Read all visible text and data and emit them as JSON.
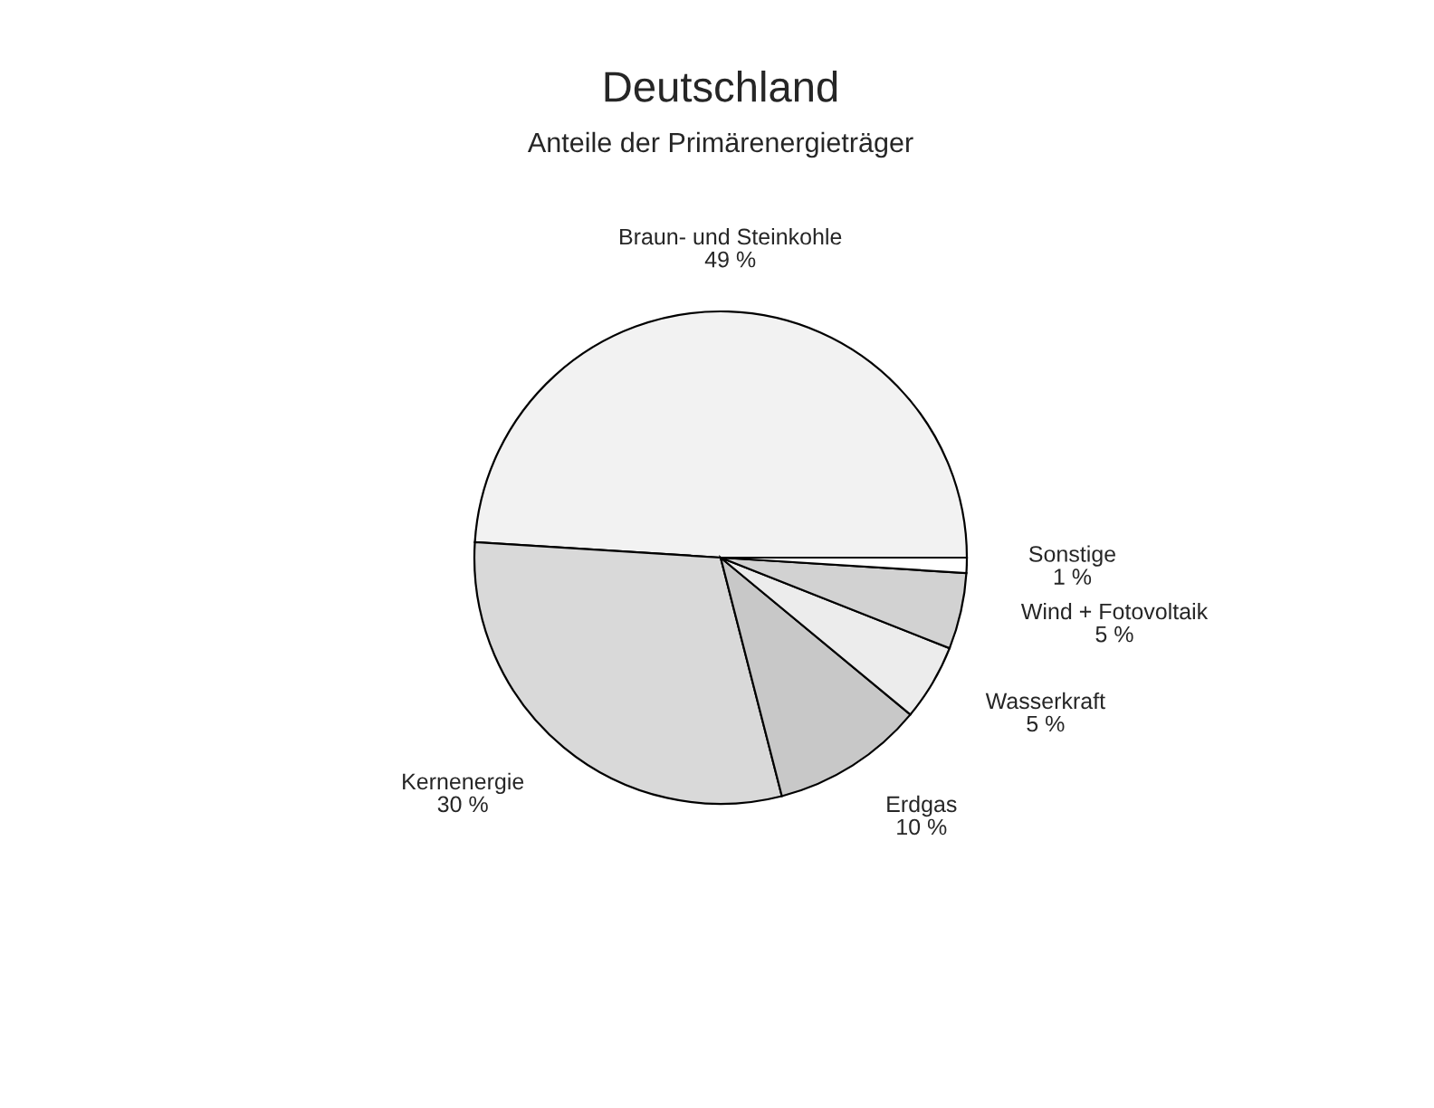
{
  "chart_data": {
    "type": "pie",
    "title": "Deutschland",
    "subtitle": "Anteile der Primärenergieträger",
    "categories": [
      "Braun- und Steinkohle",
      "Kernenergie",
      "Erdgas",
      "Wasserkraft",
      "Wind + Fotovoltaik",
      "Sonstige"
    ],
    "values": [
      49,
      30,
      10,
      5,
      5,
      1
    ],
    "value_labels": [
      "49 %",
      "30 %",
      "10 %",
      "5 %",
      "5 %",
      "1 %"
    ],
    "colors": [
      "#f2f2f2",
      "#d9d9d9",
      "#c8c8c8",
      "#ececec",
      "#d2d2d2",
      "#ffffff"
    ]
  }
}
